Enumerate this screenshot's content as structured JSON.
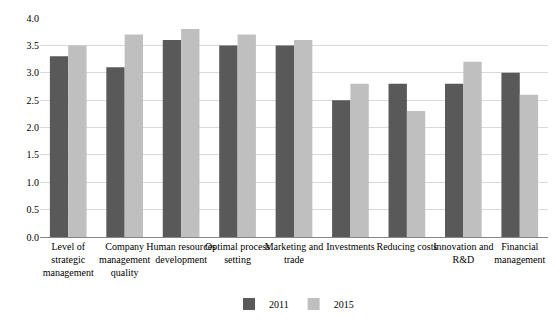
{
  "chart_data": {
    "type": "bar",
    "categories": [
      "Level of strategic management",
      "Company management quality",
      "Human resources development",
      "Optimal process setting",
      "Marketing and trade",
      "Investments",
      "Reducing costs",
      "Innovation and R&D",
      "Financial management"
    ],
    "series": [
      {
        "name": "2011",
        "color": "#595959",
        "values": [
          3.3,
          3.1,
          3.6,
          3.5,
          3.5,
          2.5,
          2.8,
          2.8,
          3.0
        ]
      },
      {
        "name": "2015",
        "color": "#bfbfbf",
        "values": [
          3.5,
          3.7,
          3.8,
          3.7,
          3.6,
          2.8,
          2.3,
          3.2,
          2.6
        ]
      }
    ],
    "ylim": [
      0,
      4
    ],
    "yticks": [
      {
        "value": 0,
        "label": "0.0"
      },
      {
        "value": 0.5,
        "label": "0.5"
      },
      {
        "value": 1,
        "label": "1.0"
      },
      {
        "value": 1.5,
        "label": "1.5"
      },
      {
        "value": 2,
        "label": "2.0"
      },
      {
        "value": 2.5,
        "label": "2.5"
      },
      {
        "value": 3,
        "label": "3.0"
      },
      {
        "value": 3.5,
        "label": "3.5"
      },
      {
        "value": 4,
        "label": "4.0"
      }
    ],
    "grid": true,
    "legend": "bottom"
  }
}
